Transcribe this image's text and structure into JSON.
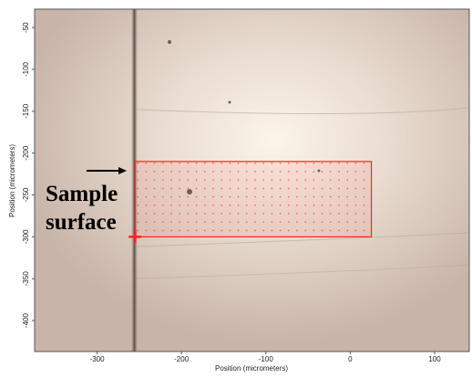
{
  "chart_data": {
    "type": "image",
    "x_label": "Position (micrometers)",
    "y_label": "Position (micrometers)",
    "xlim": [
      -374,
      141
    ],
    "ylim": [
      -437,
      -28
    ],
    "xticks": [
      -300,
      -200,
      -100,
      0,
      100
    ],
    "yticks": [
      -50,
      -100,
      -150,
      -200,
      -250,
      -300,
      -350,
      -400
    ],
    "region": {
      "xlim": [
        -255,
        25
      ],
      "ylim": [
        -300,
        -210
      ],
      "color": "#ff2020"
    },
    "marker": {
      "x": -255,
      "y": -300,
      "color": "#ff2020"
    },
    "annotation": [
      "Sample",
      "surface"
    ]
  }
}
